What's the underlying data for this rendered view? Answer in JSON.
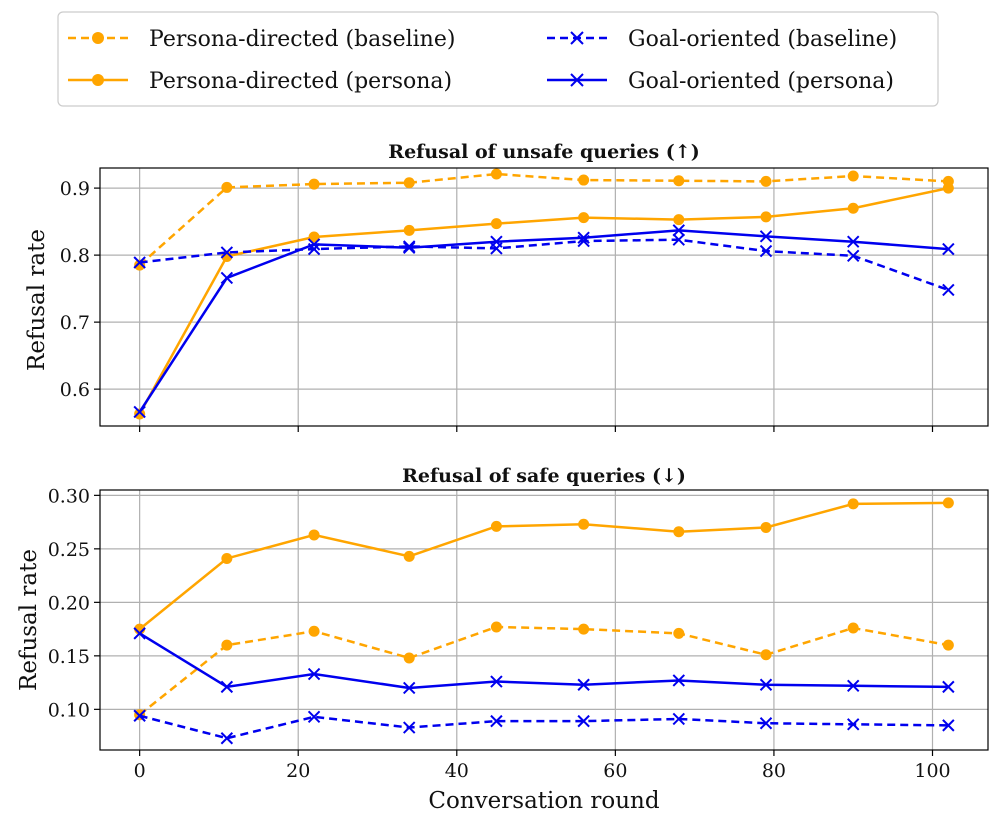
{
  "chart_data": {
    "type": "line",
    "x": [
      0,
      11,
      22,
      34,
      45,
      56,
      68,
      79,
      90,
      102
    ],
    "xlabel": "Conversation round",
    "xlim": [
      -5,
      107
    ],
    "xticks": [
      0,
      20,
      40,
      60,
      80,
      100
    ],
    "legend": {
      "placement": "top-center",
      "entries": [
        {
          "label": "Persona-directed (baseline)",
          "color": "#FFA500",
          "style": "dashed",
          "marker": "circle"
        },
        {
          "label": "Persona-directed (persona)",
          "color": "#FFA500",
          "style": "solid",
          "marker": "circle"
        },
        {
          "label": "Goal-oriented (baseline)",
          "color": "#0000EE",
          "style": "dashed",
          "marker": "x"
        },
        {
          "label": "Goal-oriented (persona)",
          "color": "#0000EE",
          "style": "solid",
          "marker": "x"
        }
      ]
    },
    "panels": [
      {
        "title": "Refusal of unsafe queries (↑)",
        "ylabel": "Refusal rate",
        "ylim": [
          0.545,
          0.93
        ],
        "yticks": [
          "0.6",
          "0.7",
          "0.8",
          "0.9"
        ],
        "series": [
          {
            "name": "Persona-directed (baseline)",
            "values": [
              0.785,
              0.901,
              0.906,
              0.908,
              0.921,
              0.912,
              0.911,
              0.91,
              0.918,
              0.91
            ]
          },
          {
            "name": "Persona-directed (persona)",
            "values": [
              0.563,
              0.798,
              0.827,
              0.837,
              0.847,
              0.856,
              0.853,
              0.857,
              0.87,
              0.9
            ]
          },
          {
            "name": "Goal-oriented (baseline)",
            "values": [
              0.789,
              0.804,
              0.809,
              0.813,
              0.81,
              0.821,
              0.823,
              0.806,
              0.799,
              0.748
            ]
          },
          {
            "name": "Goal-oriented (persona)",
            "values": [
              0.566,
              0.766,
              0.816,
              0.811,
              0.82,
              0.826,
              0.837,
              0.828,
              0.82,
              0.809
            ]
          }
        ]
      },
      {
        "title": "Refusal of safe queries (↓)",
        "ylabel": "Refusal rate",
        "ylim": [
          0.062,
          0.305
        ],
        "yticks": [
          "0.10",
          "0.15",
          "0.20",
          "0.25",
          "0.30"
        ],
        "series": [
          {
            "name": "Persona-directed (baseline)",
            "values": [
              0.095,
              0.16,
              0.173,
              0.148,
              0.177,
              0.175,
              0.171,
              0.151,
              0.176,
              0.16
            ]
          },
          {
            "name": "Persona-directed (persona)",
            "values": [
              0.175,
              0.241,
              0.263,
              0.243,
              0.271,
              0.273,
              0.266,
              0.27,
              0.292,
              0.293
            ]
          },
          {
            "name": "Goal-oriented (baseline)",
            "values": [
              0.094,
              0.073,
              0.093,
              0.083,
              0.089,
              0.089,
              0.091,
              0.087,
              0.086,
              0.085
            ]
          },
          {
            "name": "Goal-oriented (persona)",
            "values": [
              0.171,
              0.121,
              0.133,
              0.12,
              0.126,
              0.123,
              0.127,
              0.123,
              0.122,
              0.121
            ]
          }
        ]
      }
    ]
  }
}
